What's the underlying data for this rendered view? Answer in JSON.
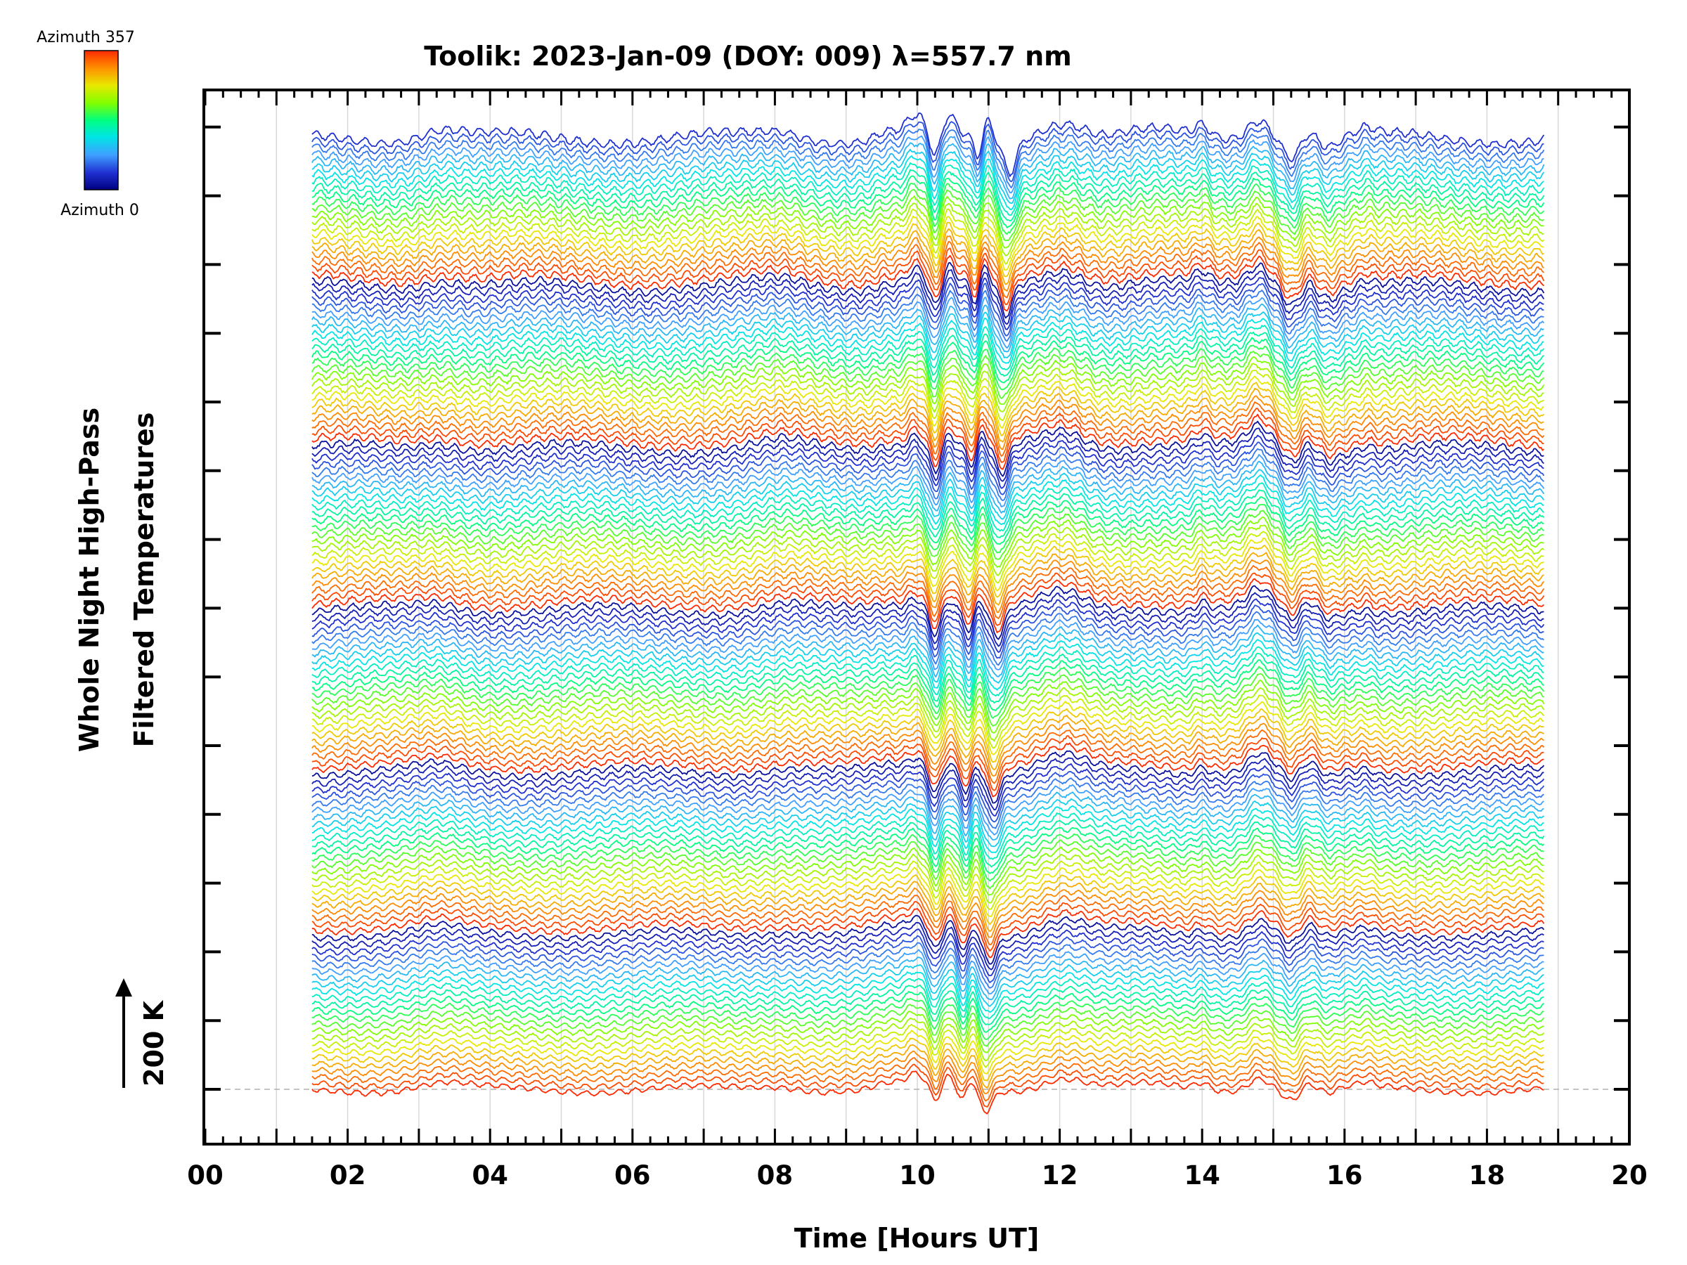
{
  "chart_data": {
    "type": "line",
    "title": "Toolik: 2023-Jan-09 (DOY: 009) λ=557.7 nm",
    "xlabel": "Time [Hours UT]",
    "ylabel_line1": "Whole Night High-Pass",
    "ylabel_line2": "Filtered Temperatures",
    "scale_label": "200 K",
    "xlim": [
      0,
      20
    ],
    "x_tick_labels": [
      "00",
      "02",
      "04",
      "06",
      "08",
      "10",
      "12",
      "14",
      "16",
      "18",
      "20"
    ],
    "x_ticks": [
      0,
      2,
      4,
      6,
      8,
      10,
      12,
      14,
      16,
      18,
      20
    ],
    "x_range_data": [
      1.5,
      18.8
    ],
    "grid": true,
    "colorbar": {
      "top_label": "Azimuth 357",
      "bottom_label": "Azimuth 0",
      "colormap": "rainbow",
      "colors": [
        "#ff2a00",
        "#ff8c00",
        "#e8e800",
        "#7fff00",
        "#00ff7f",
        "#00e5e5",
        "#3f9fff",
        "#1f2fd0",
        "#000080"
      ]
    },
    "series_count": 142,
    "azimuth_cycle_count": 6,
    "features": [
      {
        "x": 9.95,
        "note": "peak"
      },
      {
        "x": 10.25,
        "note": "dip"
      },
      {
        "x": 10.45,
        "note": "peak"
      },
      {
        "x": 10.62,
        "note": "dip"
      },
      {
        "x": 10.75,
        "note": "peak"
      },
      {
        "x": 10.95,
        "note": "sharp drop"
      },
      {
        "x": 12.05,
        "note": "peak"
      },
      {
        "x": 14.8,
        "note": "peak"
      },
      {
        "x": 15.3,
        "note": "dip"
      }
    ]
  }
}
